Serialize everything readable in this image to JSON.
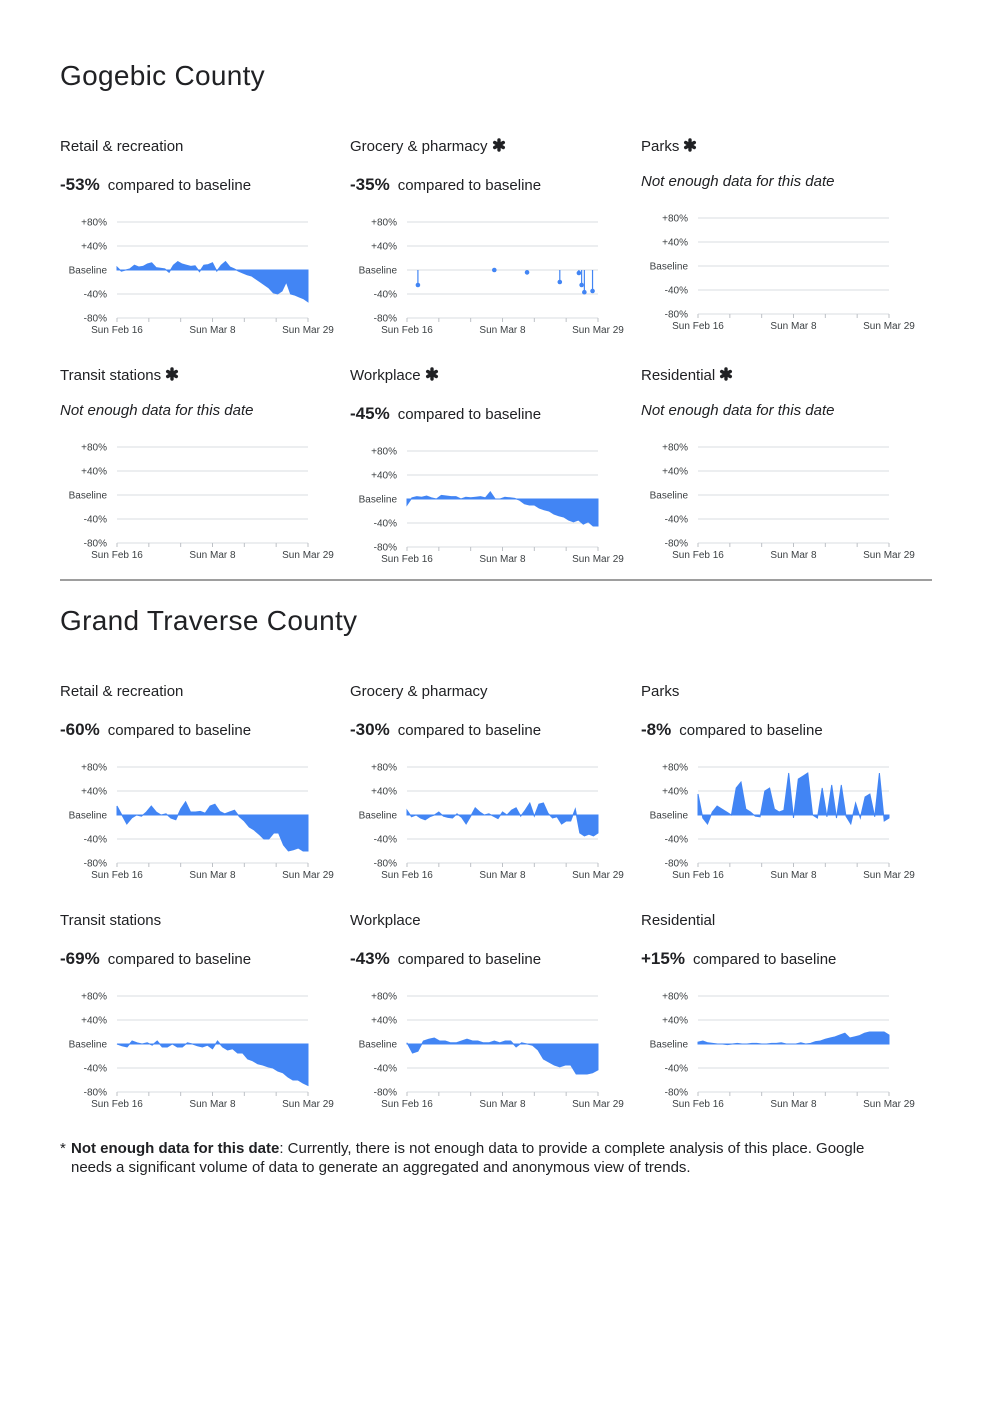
{
  "axis": {
    "y_ticks": [
      "+80%",
      "+40%",
      "Baseline",
      "-40%",
      "-80%"
    ],
    "x_ticks": [
      "Sun Feb 16",
      "Sun Mar 8",
      "Sun Mar 29"
    ],
    "compared_text": "compared to baseline",
    "no_data_text": "Not enough data for this date"
  },
  "colors": {
    "fill": "#4285f4",
    "grid": "#dadce0",
    "text": "#202124"
  },
  "footnote": {
    "star": "*",
    "key": "Not enough data for this date",
    "text": ": Currently, there is not enough data to provide a complete analysis of this place. Google needs a significant volume of data to generate an aggregated and anonymous view of trends."
  },
  "counties": [
    {
      "name": "Gogebic County"
    },
    {
      "name": "Grand Traverse County"
    }
  ],
  "chart_data": [
    {
      "id": "g-retail",
      "county": "Gogebic County",
      "type": "area",
      "title": "Retail & recreation",
      "asterisk": false,
      "value_label": "-53%",
      "ylim": [
        -80,
        80
      ],
      "values": [
        5,
        -2,
        0,
        2,
        8,
        5,
        6,
        10,
        12,
        4,
        3,
        2,
        -4,
        8,
        14,
        10,
        8,
        6,
        7,
        -3,
        8,
        9,
        12,
        -2,
        8,
        14,
        5,
        2,
        -2,
        -5,
        -8,
        -10,
        -15,
        -20,
        -25,
        -30,
        -38,
        -40,
        -35,
        -20,
        -40,
        -42,
        -45,
        -48,
        -53
      ]
    },
    {
      "id": "g-grocery",
      "county": "Gogebic County",
      "type": "sparse",
      "title": "Grocery & pharmacy",
      "asterisk": true,
      "value_label": "-35%",
      "ylim": [
        -80,
        80
      ],
      "points": [
        {
          "i": 4,
          "v": -25
        },
        {
          "i": 32,
          "v": 0
        },
        {
          "i": 44,
          "v": -4
        },
        {
          "i": 56,
          "v": -20
        },
        {
          "i": 63,
          "v": -5
        },
        {
          "i": 64,
          "v": -25
        },
        {
          "i": 65,
          "v": -37
        },
        {
          "i": 68,
          "v": -35
        }
      ],
      "count": 71
    },
    {
      "id": "g-parks",
      "county": "Gogebic County",
      "type": "empty",
      "title": "Parks",
      "asterisk": true,
      "value_label": null,
      "ylim": [
        -80,
        80
      ]
    },
    {
      "id": "g-transit",
      "county": "Gogebic County",
      "type": "empty",
      "title": "Transit stations",
      "asterisk": true,
      "value_label": null,
      "ylim": [
        -80,
        80
      ]
    },
    {
      "id": "g-workplace",
      "county": "Gogebic County",
      "type": "area",
      "title": "Workplace",
      "asterisk": true,
      "value_label": "-45%",
      "ylim": [
        -80,
        80
      ],
      "values": [
        -10,
        2,
        4,
        3,
        5,
        2,
        0,
        6,
        5,
        4,
        4,
        0,
        3,
        2,
        3,
        4,
        2,
        12,
        0,
        0,
        3,
        2,
        1,
        -2,
        -8,
        -10,
        -10,
        -15,
        -18,
        -20,
        -25,
        -28,
        -30,
        -35,
        -38,
        -35,
        -42,
        -38,
        -45,
        -45
      ]
    },
    {
      "id": "g-residential",
      "county": "Gogebic County",
      "type": "empty",
      "title": "Residential",
      "asterisk": true,
      "value_label": null,
      "ylim": [
        -80,
        80
      ]
    },
    {
      "id": "t-retail",
      "county": "Grand Traverse County",
      "type": "area",
      "title": "Retail & recreation",
      "asterisk": false,
      "value_label": "-60%",
      "ylim": [
        -80,
        80
      ],
      "values": [
        15,
        0,
        -15,
        -5,
        0,
        -2,
        5,
        15,
        5,
        0,
        2,
        -5,
        -8,
        10,
        22,
        5,
        5,
        6,
        3,
        15,
        18,
        6,
        2,
        5,
        8,
        -3,
        -10,
        -20,
        -25,
        -32,
        -40,
        -40,
        -30,
        -30,
        -50,
        -60,
        -58,
        -55,
        -60,
        -60
      ]
    },
    {
      "id": "t-grocery",
      "county": "Grand Traverse County",
      "type": "area",
      "title": "Grocery & pharmacy",
      "asterisk": false,
      "value_label": "-30%",
      "ylim": [
        -80,
        80
      ],
      "values": [
        8,
        -3,
        0,
        -5,
        -8,
        -3,
        0,
        5,
        -2,
        -4,
        -5,
        2,
        -4,
        -15,
        -2,
        12,
        5,
        0,
        2,
        -2,
        -6,
        5,
        0,
        8,
        12,
        -2,
        8,
        20,
        -2,
        18,
        20,
        3,
        -5,
        -3,
        -15,
        -10,
        -10,
        10,
        -30,
        -35,
        -32,
        -35,
        -30
      ]
    },
    {
      "id": "t-parks",
      "county": "Grand Traverse County",
      "type": "area",
      "title": "Parks",
      "asterisk": false,
      "value_label": "-8%",
      "ylim": [
        -80,
        80
      ],
      "values": [
        35,
        -5,
        -15,
        5,
        15,
        10,
        5,
        0,
        45,
        55,
        10,
        5,
        -2,
        -3,
        40,
        45,
        10,
        5,
        8,
        70,
        -5,
        60,
        65,
        70,
        0,
        -5,
        45,
        -3,
        50,
        -5,
        50,
        -2,
        -15,
        20,
        -5,
        30,
        35,
        -3,
        70,
        -10,
        -5
      ]
    },
    {
      "id": "t-transit",
      "county": "Grand Traverse County",
      "type": "area",
      "title": "Transit stations",
      "asterisk": false,
      "value_label": "-69%",
      "ylim": [
        -80,
        80
      ],
      "values": [
        0,
        -3,
        -5,
        5,
        2,
        0,
        2,
        -2,
        5,
        -5,
        -5,
        0,
        -5,
        -5,
        2,
        0,
        -3,
        -5,
        -2,
        -8,
        5,
        -5,
        -10,
        -8,
        -15,
        -15,
        -25,
        -28,
        -33,
        -35,
        -38,
        -40,
        -45,
        -48,
        -55,
        -60,
        -60,
        -65,
        -69
      ]
    },
    {
      "id": "t-workplace",
      "county": "Grand Traverse County",
      "type": "area",
      "title": "Workplace",
      "asterisk": false,
      "value_label": "-43%",
      "ylim": [
        -80,
        80
      ],
      "values": [
        2,
        -15,
        -12,
        5,
        8,
        10,
        5,
        5,
        2,
        2,
        5,
        8,
        5,
        5,
        2,
        2,
        5,
        2,
        5,
        5,
        -5,
        2,
        0,
        -2,
        -10,
        -25,
        -30,
        -35,
        -38,
        -35,
        -35,
        -50,
        -50,
        -50,
        -48,
        -43
      ]
    },
    {
      "id": "t-residential",
      "county": "Grand Traverse County",
      "type": "area",
      "title": "Residential",
      "asterisk": false,
      "value_label": "+15%",
      "ylim": [
        -80,
        80
      ],
      "values": [
        3,
        5,
        2,
        1,
        0,
        0,
        -1,
        0,
        1,
        0,
        0,
        1,
        1,
        0,
        0,
        1,
        1,
        2,
        0,
        0,
        0,
        2,
        0,
        1,
        4,
        5,
        8,
        10,
        12,
        15,
        18,
        10,
        12,
        14,
        18,
        20,
        20,
        20,
        20,
        15
      ]
    }
  ]
}
